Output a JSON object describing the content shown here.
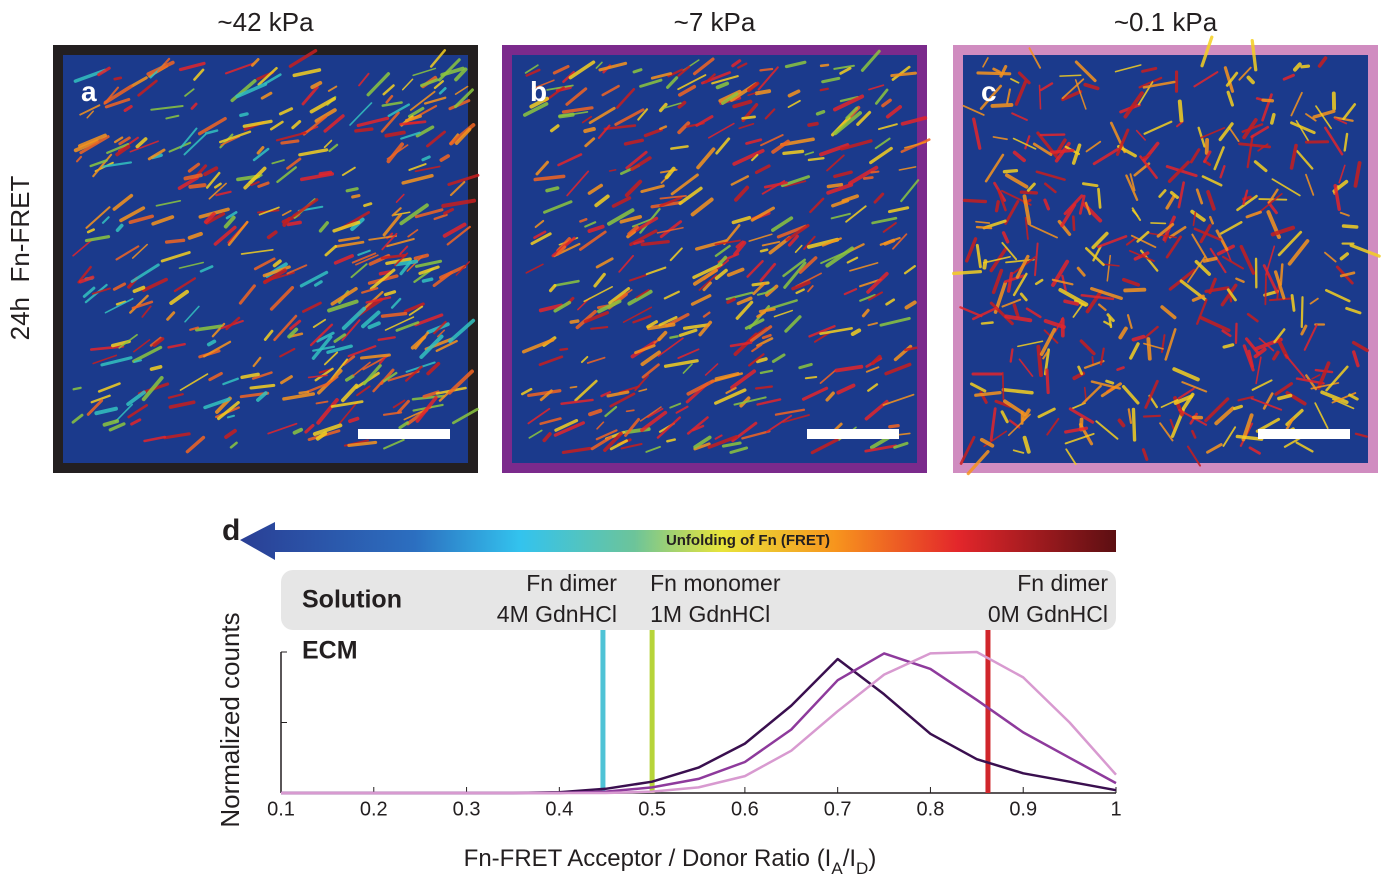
{
  "panels": [
    {
      "title": "~42 kPa",
      "letter": "a",
      "border": "#231f20"
    },
    {
      "title": "~7 kPa",
      "letter": "b",
      "border": "#7b2a8c"
    },
    {
      "title": "~0.1 kPa",
      "letter": "c",
      "border": "#d08cc0"
    }
  ],
  "row_label": "24h  Fn-FRET",
  "chart_data": {
    "type": "line",
    "panel_label": "d",
    "colorbar_label": "Unfolding of Fn (FRET)",
    "solution_label": "Solution",
    "ecm_label": "ECM",
    "ylabel": "Normalized counts",
    "xlabel_parts": [
      "Fn-FRET Acceptor / Donor Ratio (I",
      "A",
      "/I",
      "D",
      ")"
    ],
    "xlim": [
      0.1,
      1
    ],
    "xticks": [
      0.1,
      0.2,
      0.3,
      0.4,
      0.5,
      0.6,
      0.7,
      0.8,
      0.9,
      1
    ],
    "ylim": [
      0,
      1
    ],
    "yticks": [
      0,
      0.5,
      1
    ],
    "x": [
      0.1,
      0.15,
      0.2,
      0.25,
      0.3,
      0.35,
      0.4,
      0.45,
      0.5,
      0.55,
      0.6,
      0.65,
      0.7,
      0.75,
      0.8,
      0.85,
      0.9,
      0.95,
      1
    ],
    "series": [
      {
        "color": "#3a0f4f",
        "values": [
          0,
          0,
          0,
          0,
          0,
          0,
          0.005,
          0.03,
          0.08,
          0.18,
          0.35,
          0.62,
          0.95,
          0.7,
          0.42,
          0.24,
          0.14,
          0.08,
          0.02
        ]
      },
      {
        "color": "#8e3a9c",
        "values": [
          0,
          0,
          0,
          0,
          0,
          0,
          0,
          0.01,
          0.04,
          0.1,
          0.22,
          0.45,
          0.8,
          0.99,
          0.88,
          0.66,
          0.43,
          0.25,
          0.07
        ]
      },
      {
        "color": "#d89ad0",
        "values": [
          0,
          0,
          0,
          0,
          0,
          0,
          0,
          0,
          0.01,
          0.04,
          0.12,
          0.3,
          0.58,
          0.84,
          0.99,
          1,
          0.82,
          0.5,
          0.13
        ]
      }
    ],
    "reference_lines": [
      {
        "x": 0.447,
        "color": "#4fc3d6",
        "label": [
          "Fn dimer",
          "4M GdnHCl"
        ],
        "align": "end"
      },
      {
        "x": 0.5,
        "color": "#b7d43a",
        "label": [
          "Fn monomer",
          "1M GdnHCl"
        ],
        "align": "start"
      },
      {
        "x": 0.862,
        "color": "#d0262b",
        "label": [
          "Fn dimer",
          "0M GdnHCl"
        ],
        "align": "end"
      }
    ]
  }
}
